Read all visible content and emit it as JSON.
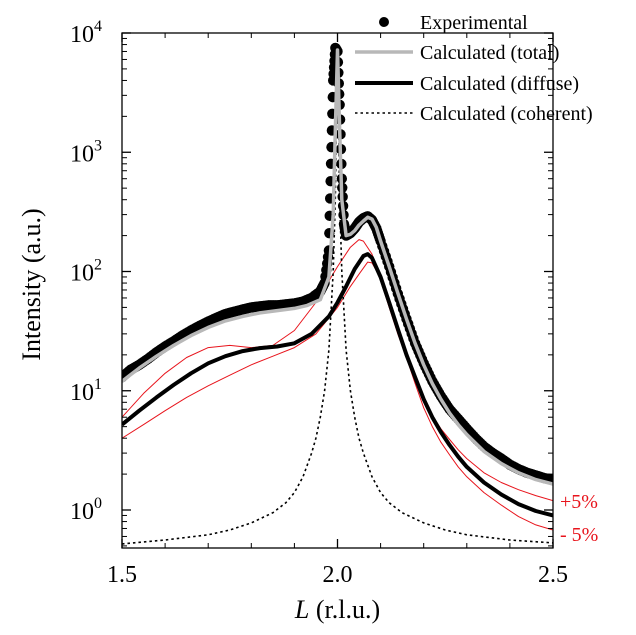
{
  "chart_data": {
    "type": "line",
    "title": "",
    "xlabel": {
      "italic": "L",
      "rest": " (r.l.u.)"
    },
    "ylabel": "Intensity (a.u.)",
    "xlim": [
      1.5,
      2.5
    ],
    "ylim": [
      0.5,
      10000
    ],
    "yscale": "log",
    "grid": false,
    "legend_position": "top-right",
    "x_ticks": [
      1.5,
      2.0,
      2.5
    ],
    "x_tick_labels": [
      "1.5",
      "2.0",
      "2.5"
    ],
    "y_ticks": [
      1,
      10,
      100,
      1000,
      10000
    ],
    "y_tick_base": "10",
    "y_tick_exponents": [
      "0",
      "1",
      "2",
      "3",
      "4"
    ],
    "series": [
      {
        "name": "Experimental",
        "kind": "scatter",
        "color": "#000000",
        "x": [
          1.5,
          1.52,
          1.54,
          1.56,
          1.58,
          1.6,
          1.62,
          1.64,
          1.66,
          1.68,
          1.7,
          1.72,
          1.74,
          1.76,
          1.78,
          1.8,
          1.82,
          1.84,
          1.86,
          1.88,
          1.9,
          1.92,
          1.94,
          1.96,
          1.97,
          1.98,
          1.985,
          1.99,
          1.995,
          2.0,
          2.005,
          2.01,
          2.015,
          2.02,
          2.03,
          2.04,
          2.05,
          2.06,
          2.07,
          2.08,
          2.09,
          2.1,
          2.12,
          2.14,
          2.16,
          2.18,
          2.2,
          2.22,
          2.24,
          2.26,
          2.28,
          2.3,
          2.32,
          2.34,
          2.36,
          2.38,
          2.4,
          2.42,
          2.44,
          2.46,
          2.48,
          2.5
        ],
        "y": [
          13,
          15,
          16.5,
          18.5,
          21,
          23.5,
          26,
          29,
          32,
          35,
          38,
          41,
          44,
          46,
          48,
          50,
          51,
          52,
          52,
          53,
          54,
          56,
          60,
          68,
          80,
          150,
          800,
          4000,
          7500,
          7000,
          2500,
          600,
          250,
          200,
          210,
          230,
          260,
          280,
          290,
          270,
          230,
          180,
          110,
          65,
          40,
          25,
          17,
          12,
          9,
          7,
          5.8,
          4.8,
          4,
          3.4,
          3,
          2.7,
          2.4,
          2.2,
          2.05,
          1.95,
          1.85,
          1.8
        ]
      },
      {
        "name": "Calculated (total)",
        "kind": "line",
        "color": "#b8b8b8",
        "x": [
          1.5,
          1.54,
          1.58,
          1.62,
          1.66,
          1.7,
          1.74,
          1.78,
          1.82,
          1.86,
          1.9,
          1.93,
          1.96,
          1.98,
          1.99,
          1.995,
          2.0,
          2.005,
          2.01,
          2.02,
          2.03,
          2.04,
          2.05,
          2.06,
          2.07,
          2.08,
          2.09,
          2.1,
          2.12,
          2.14,
          2.16,
          2.18,
          2.2,
          2.22,
          2.24,
          2.26,
          2.28,
          2.3,
          2.34,
          2.38,
          2.42,
          2.46,
          2.5
        ],
        "y": [
          12,
          15.5,
          19.5,
          24,
          29,
          34,
          38.5,
          42,
          45,
          47,
          49,
          52,
          58,
          90,
          300,
          1500,
          7200,
          1500,
          400,
          200,
          205,
          220,
          245,
          265,
          285,
          275,
          235,
          180,
          110,
          66,
          40,
          25,
          16.5,
          11.5,
          8.5,
          6.5,
          5.2,
          4.3,
          3.1,
          2.45,
          2.05,
          1.8,
          1.65
        ]
      },
      {
        "name": "Calculated (diffuse)",
        "kind": "line",
        "color": "#000000",
        "x": [
          1.5,
          1.54,
          1.58,
          1.62,
          1.66,
          1.7,
          1.74,
          1.78,
          1.82,
          1.86,
          1.9,
          1.94,
          1.98,
          2.0,
          2.02,
          2.04,
          2.06,
          2.07,
          2.08,
          2.1,
          2.12,
          2.14,
          2.16,
          2.18,
          2.2,
          2.22,
          2.24,
          2.26,
          2.28,
          2.3,
          2.34,
          2.38,
          2.42,
          2.46,
          2.5
        ],
        "y": [
          5.2,
          6.8,
          8.8,
          11.2,
          14,
          17,
          19.5,
          21.5,
          22.8,
          23.5,
          25,
          30,
          42,
          55,
          75,
          105,
          135,
          140,
          130,
          90,
          55,
          33,
          20,
          13,
          8.5,
          6,
          4.5,
          3.5,
          2.8,
          2.3,
          1.7,
          1.35,
          1.12,
          0.98,
          0.9
        ]
      },
      {
        "name": "Calculated (coherent)",
        "kind": "dotted",
        "color": "#000000",
        "x": [
          1.5,
          1.6,
          1.7,
          1.75,
          1.8,
          1.85,
          1.88,
          1.9,
          1.92,
          1.94,
          1.95,
          1.96,
          1.97,
          1.98,
          1.99,
          1.995,
          2.0,
          2.005,
          2.01,
          2.02,
          2.03,
          2.04,
          2.05,
          2.06,
          2.08,
          2.1,
          2.12,
          2.15,
          2.2,
          2.25,
          2.3,
          2.4,
          2.5
        ],
        "y": [
          0.52,
          0.56,
          0.62,
          0.68,
          0.78,
          0.95,
          1.15,
          1.4,
          1.9,
          3.0,
          4.0,
          6.0,
          10,
          22,
          100,
          400,
          7200,
          400,
          100,
          22,
          10,
          6.0,
          4.0,
          3.0,
          1.9,
          1.4,
          1.15,
          0.95,
          0.78,
          0.68,
          0.62,
          0.56,
          0.53
        ]
      },
      {
        "name": "+5%",
        "kind": "thin-line",
        "color": "#e8141c",
        "x": [
          1.5,
          1.55,
          1.6,
          1.65,
          1.7,
          1.75,
          1.8,
          1.85,
          1.9,
          1.95,
          2.0,
          2.03,
          2.05,
          2.06,
          2.08,
          2.1,
          2.12,
          2.14,
          2.16,
          2.18,
          2.2,
          2.22,
          2.24,
          2.26,
          2.28,
          2.3,
          2.34,
          2.38,
          2.42,
          2.46,
          2.5
        ],
        "y": [
          6.0,
          9.5,
          14,
          19,
          23,
          24,
          23,
          24,
          32,
          55,
          110,
          160,
          185,
          180,
          140,
          85,
          50,
          30,
          19,
          12.5,
          8.5,
          6.2,
          4.8,
          3.9,
          3.2,
          2.7,
          2.05,
          1.7,
          1.48,
          1.32,
          1.2
        ]
      },
      {
        "name": "- 5%",
        "kind": "thin-line",
        "color": "#e8141c",
        "x": [
          1.5,
          1.55,
          1.6,
          1.65,
          1.7,
          1.75,
          1.8,
          1.85,
          1.9,
          1.95,
          2.0,
          2.03,
          2.05,
          2.07,
          2.08,
          2.1,
          2.12,
          2.14,
          2.16,
          2.18,
          2.2,
          2.22,
          2.24,
          2.26,
          2.28,
          2.3,
          2.34,
          2.38,
          2.42,
          2.46,
          2.5
        ],
        "y": [
          4.0,
          5.2,
          6.8,
          8.8,
          11,
          13.5,
          16.5,
          19.5,
          23,
          30,
          50,
          75,
          95,
          120,
          118,
          88,
          55,
          32,
          19,
          11.5,
          7.2,
          5.0,
          3.7,
          2.9,
          2.3,
          1.9,
          1.4,
          1.1,
          0.88,
          0.75,
          0.68
        ]
      }
    ],
    "annotations": [
      {
        "text": "+5%",
        "x": 2.5,
        "y": 1.2,
        "color": "#e8141c"
      },
      {
        "text": "- 5%",
        "x": 2.5,
        "y": 0.68,
        "color": "#e8141c"
      }
    ]
  }
}
